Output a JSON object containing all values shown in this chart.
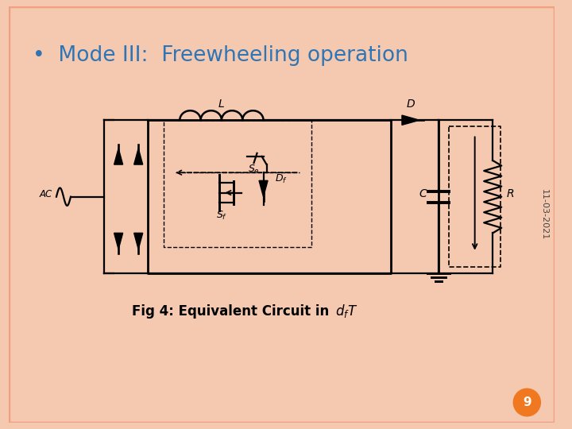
{
  "title": "Mode III:  Freewheeling operation",
  "title_color": "#2E75B6",
  "bullet": "•",
  "date_text": "11-03-2021",
  "page_number": "9",
  "bg_color": "#FFFFFF",
  "border_color": "#F0A080",
  "slide_bg": "#F5C8B0",
  "page_circle_color": "#F07820",
  "page_text_color": "#FFFFFF"
}
